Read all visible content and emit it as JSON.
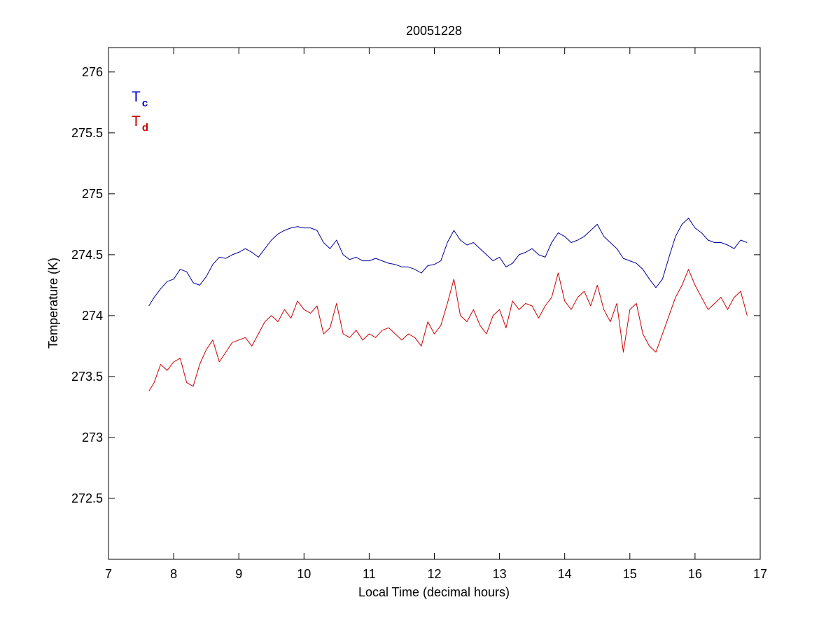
{
  "chart_data": {
    "type": "line",
    "title": "20051228",
    "xlabel": "Local Time (decimal hours)",
    "ylabel": "Temperature (K)",
    "xlim": [
      7,
      17
    ],
    "ylim": [
      272,
      276.2
    ],
    "xticks": [
      7,
      8,
      9,
      10,
      11,
      12,
      13,
      14,
      15,
      16,
      17
    ],
    "yticks": [
      272.5,
      273,
      273.5,
      274,
      274.5,
      275,
      275.5,
      276
    ],
    "grid": false,
    "legend": {
      "placement": "top-left",
      "entries": [
        {
          "main": "T",
          "sub": "c",
          "color": "#0000cc"
        },
        {
          "main": "T",
          "sub": "d",
          "color": "#cc0000"
        }
      ]
    },
    "series": [
      {
        "color": "#000099",
        "x": [
          7.62,
          7.7,
          7.8,
          7.9,
          8.0,
          8.1,
          8.2,
          8.3,
          8.4,
          8.5,
          8.6,
          8.7,
          8.8,
          8.9,
          9.0,
          9.1,
          9.2,
          9.3,
          9.4,
          9.5,
          9.6,
          9.7,
          9.8,
          9.9,
          10.0,
          10.1,
          10.2,
          10.3,
          10.4,
          10.5,
          10.6,
          10.7,
          10.8,
          10.9,
          11.0,
          11.1,
          11.2,
          11.3,
          11.4,
          11.5,
          11.6,
          11.7,
          11.8,
          11.9,
          12.0,
          12.1,
          12.2,
          12.3,
          12.4,
          12.5,
          12.6,
          12.7,
          12.8,
          12.9,
          13.0,
          13.1,
          13.2,
          13.3,
          13.4,
          13.5,
          13.6,
          13.7,
          13.8,
          13.9,
          14.0,
          14.1,
          14.2,
          14.3,
          14.4,
          14.5,
          14.6,
          14.7,
          14.8,
          14.9,
          15.0,
          15.1,
          15.2,
          15.3,
          15.4,
          15.5,
          15.6,
          15.7,
          15.8,
          15.9,
          16.0,
          16.1,
          16.2,
          16.3,
          16.4,
          16.5,
          16.6,
          16.7,
          16.8
        ],
        "values": [
          274.08,
          274.15,
          274.22,
          274.28,
          274.3,
          274.38,
          274.36,
          274.27,
          274.25,
          274.32,
          274.42,
          274.48,
          274.47,
          274.5,
          274.52,
          274.55,
          274.52,
          274.48,
          274.55,
          274.62,
          274.67,
          274.7,
          274.72,
          274.73,
          274.72,
          274.72,
          274.7,
          274.6,
          274.55,
          274.62,
          274.5,
          274.46,
          274.48,
          274.45,
          274.45,
          274.47,
          274.45,
          274.43,
          274.42,
          274.4,
          274.4,
          274.38,
          274.35,
          274.41,
          274.42,
          274.45,
          274.6,
          274.7,
          274.62,
          274.58,
          274.6,
          274.55,
          274.5,
          274.45,
          274.48,
          274.4,
          274.43,
          274.5,
          274.52,
          274.55,
          274.5,
          274.48,
          274.6,
          274.68,
          274.65,
          274.6,
          274.62,
          274.65,
          274.7,
          274.75,
          274.65,
          274.6,
          274.55,
          274.47,
          274.45,
          274.43,
          274.38,
          274.3,
          274.23,
          274.3,
          274.48,
          274.65,
          274.75,
          274.8,
          274.72,
          274.68,
          274.62,
          274.6,
          274.6,
          274.58,
          274.55,
          274.62,
          274.6
        ]
      },
      {
        "color": "#cc0000",
        "x": [
          7.62,
          7.7,
          7.8,
          7.9,
          8.0,
          8.1,
          8.2,
          8.3,
          8.4,
          8.5,
          8.6,
          8.7,
          8.8,
          8.9,
          9.0,
          9.1,
          9.2,
          9.3,
          9.4,
          9.5,
          9.6,
          9.7,
          9.8,
          9.9,
          10.0,
          10.1,
          10.2,
          10.3,
          10.4,
          10.5,
          10.6,
          10.7,
          10.8,
          10.9,
          11.0,
          11.1,
          11.2,
          11.3,
          11.4,
          11.5,
          11.6,
          11.7,
          11.8,
          11.9,
          12.0,
          12.1,
          12.2,
          12.3,
          12.4,
          12.5,
          12.6,
          12.7,
          12.8,
          12.9,
          13.0,
          13.1,
          13.2,
          13.3,
          13.4,
          13.5,
          13.6,
          13.7,
          13.8,
          13.9,
          14.0,
          14.1,
          14.2,
          14.3,
          14.4,
          14.5,
          14.6,
          14.7,
          14.8,
          14.9,
          15.0,
          15.1,
          15.2,
          15.3,
          15.4,
          15.5,
          15.6,
          15.7,
          15.8,
          15.9,
          16.0,
          16.1,
          16.2,
          16.3,
          16.4,
          16.5,
          16.6,
          16.7,
          16.8
        ],
        "values": [
          273.38,
          273.45,
          273.6,
          273.55,
          273.62,
          273.65,
          273.45,
          273.42,
          273.6,
          273.72,
          273.8,
          273.62,
          273.7,
          273.78,
          273.8,
          273.82,
          273.75,
          273.85,
          273.95,
          274.0,
          273.95,
          274.05,
          273.98,
          274.12,
          274.05,
          274.02,
          274.08,
          273.85,
          273.9,
          274.1,
          273.85,
          273.82,
          273.88,
          273.8,
          273.85,
          273.82,
          273.88,
          273.9,
          273.85,
          273.8,
          273.85,
          273.82,
          273.75,
          273.95,
          273.85,
          273.92,
          274.1,
          274.3,
          274.0,
          273.95,
          274.05,
          273.92,
          273.85,
          274.0,
          274.05,
          273.9,
          274.12,
          274.05,
          274.1,
          274.08,
          273.98,
          274.08,
          274.15,
          274.35,
          274.12,
          274.05,
          274.15,
          274.2,
          274.08,
          274.25,
          274.05,
          273.95,
          274.1,
          273.7,
          274.05,
          274.1,
          273.85,
          273.75,
          273.7,
          273.85,
          274.0,
          274.15,
          274.25,
          274.38,
          274.25,
          274.15,
          274.05,
          274.1,
          274.15,
          274.05,
          274.15,
          274.2,
          274.0
        ]
      }
    ]
  }
}
